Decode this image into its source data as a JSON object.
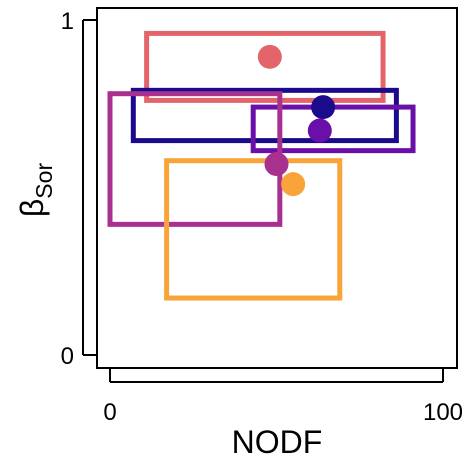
{
  "chart_data": {
    "type": "scatter",
    "title": "",
    "xlabel": "NODF",
    "ylabel": {
      "main": "β",
      "sub": "Sor"
    },
    "xlim": [
      -4,
      104
    ],
    "ylim": [
      0,
      1
    ],
    "x_ticks": [
      0,
      100
    ],
    "x_tick_labels": [
      "0",
      "100"
    ],
    "y_ticks": [
      0,
      1
    ],
    "y_tick_labels": [
      "0",
      "1"
    ],
    "grid": false,
    "legend": "none",
    "series": [
      {
        "color": "#e3656a",
        "point": {
          "x": 48,
          "y": 0.89
        },
        "box": {
          "x": [
            11,
            82
          ],
          "y": [
            0.76,
            0.96
          ]
        }
      },
      {
        "color": "#1a0b8c",
        "point": {
          "x": 64,
          "y": 0.74
        },
        "box": {
          "x": [
            7,
            86
          ],
          "y": [
            0.64,
            0.79
          ]
        }
      },
      {
        "color": "#6a0fa8",
        "point": {
          "x": 63,
          "y": 0.67
        },
        "box": {
          "x": [
            43,
            91
          ],
          "y": [
            0.61,
            0.74
          ]
        }
      },
      {
        "color": "#a8308e",
        "point": {
          "x": 50,
          "y": 0.57
        },
        "box": {
          "x": [
            0,
            51
          ],
          "y": [
            0.39,
            0.78
          ]
        }
      },
      {
        "color": "#f9a43a",
        "point": {
          "x": 55,
          "y": 0.51
        },
        "box": {
          "x": [
            17,
            69
          ],
          "y": [
            0.17,
            0.58
          ]
        }
      }
    ]
  }
}
